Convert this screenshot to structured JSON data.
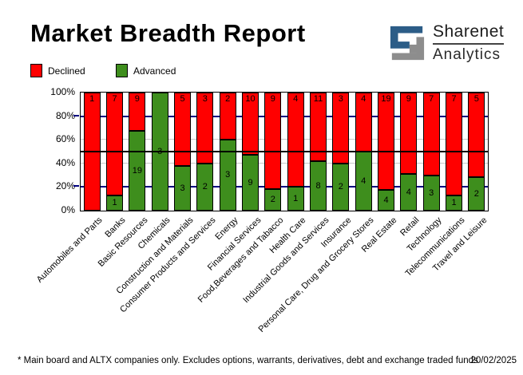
{
  "header": {
    "title": "Market Breadth Report",
    "logo": {
      "brand": "Sharenet",
      "sub": "Analytics",
      "icon": "s-spiral-logo",
      "blue": "#2c5d87",
      "gray": "#8d8d8d"
    }
  },
  "legend": [
    {
      "label": "Declined",
      "color": "#ff0000"
    },
    {
      "label": "Advanced",
      "color": "#3e8e1d"
    }
  ],
  "chart_data": {
    "type": "bar",
    "stacked": true,
    "stack_mode": "percent",
    "title": "Market Breadth Report",
    "categories": [
      "Automobiles and Parts",
      "Banks",
      "Basic Resources",
      "Chemicals",
      "Construction and Materials",
      "Consumer Products and Services",
      "Energy",
      "Financial Services",
      "Food,Beverages and Tabacco",
      "Health Care",
      "Industrial Goods and Services",
      "Insurance",
      "Personal Care, Drug and Grocery Stores",
      "Real Estate",
      "Retail",
      "Technology",
      "Telecommunications",
      "Travel and Leisure"
    ],
    "series": [
      {
        "name": "Declined",
        "color": "#ff0000",
        "values": [
          1,
          7,
          9,
          0,
          5,
          3,
          2,
          10,
          9,
          4,
          11,
          3,
          4,
          19,
          9,
          7,
          7,
          5
        ]
      },
      {
        "name": "Advanced",
        "color": "#3e8e1d",
        "values": [
          0,
          1,
          19,
          3,
          3,
          2,
          3,
          9,
          2,
          1,
          8,
          2,
          4,
          4,
          4,
          3,
          1,
          2
        ]
      }
    ],
    "ylim": [
      0,
      100
    ],
    "y_ticks": [
      100,
      80,
      60,
      40,
      20,
      0
    ],
    "y_tick_suffix": "%",
    "gridlines": {
      "navy": [
        80,
        20
      ],
      "silver": [
        60,
        40
      ],
      "black": [
        50
      ]
    },
    "grid_colors": {
      "navy": "#000080",
      "silver": "#c8c8c8",
      "black": "#000000"
    },
    "legend_position": "top-left",
    "bar_border_color": "#000000"
  },
  "footer": {
    "note": "* Main board and ALTX companies only. Excludes options, warrants, derivatives, debt and exchange traded funds",
    "date": "20/02/2025"
  }
}
